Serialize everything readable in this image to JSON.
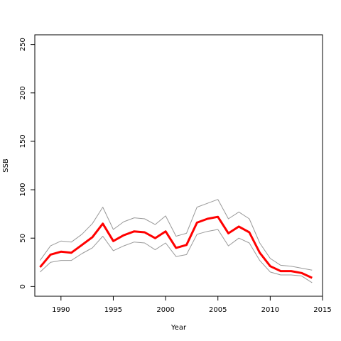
{
  "chart_data": {
    "type": "line",
    "title": "",
    "xlabel": "Year",
    "ylabel": "SSB",
    "xlim": [
      1987.5,
      2015
    ],
    "ylim": [
      -10,
      260
    ],
    "xticks": [
      1990,
      1995,
      2000,
      2005,
      2010,
      2015
    ],
    "yticks": [
      0,
      50,
      100,
      150,
      200,
      250
    ],
    "grid": false,
    "legend": "none",
    "x": [
      1988,
      1989,
      1990,
      1991,
      1992,
      1993,
      1994,
      1995,
      1996,
      1997,
      1998,
      1999,
      2000,
      2001,
      2002,
      2003,
      2004,
      2005,
      2006,
      2007,
      2008,
      2009,
      2010,
      2011,
      2012,
      2013,
      2014
    ],
    "series": [
      {
        "role": "estimate",
        "color": "#ff0000",
        "values": [
          20,
          33,
          36,
          35,
          43,
          51,
          65,
          47,
          53,
          57,
          56,
          50,
          57,
          40,
          43,
          66,
          70,
          72,
          55,
          62,
          56,
          35,
          21,
          16,
          16,
          14,
          9
        ]
      },
      {
        "role": "upper",
        "color": "#999999",
        "values": [
          27,
          42,
          47,
          46,
          54,
          65,
          82,
          59,
          67,
          71,
          70,
          64,
          73,
          52,
          55,
          82,
          86,
          90,
          70,
          77,
          70,
          45,
          29,
          22,
          21,
          19,
          17
        ]
      },
      {
        "role": "lower",
        "color": "#999999",
        "values": [
          15,
          25,
          27,
          27,
          34,
          40,
          52,
          37,
          42,
          46,
          45,
          38,
          45,
          31,
          33,
          54,
          57,
          59,
          42,
          50,
          45,
          27,
          15,
          12,
          12,
          11,
          4
        ]
      }
    ]
  }
}
